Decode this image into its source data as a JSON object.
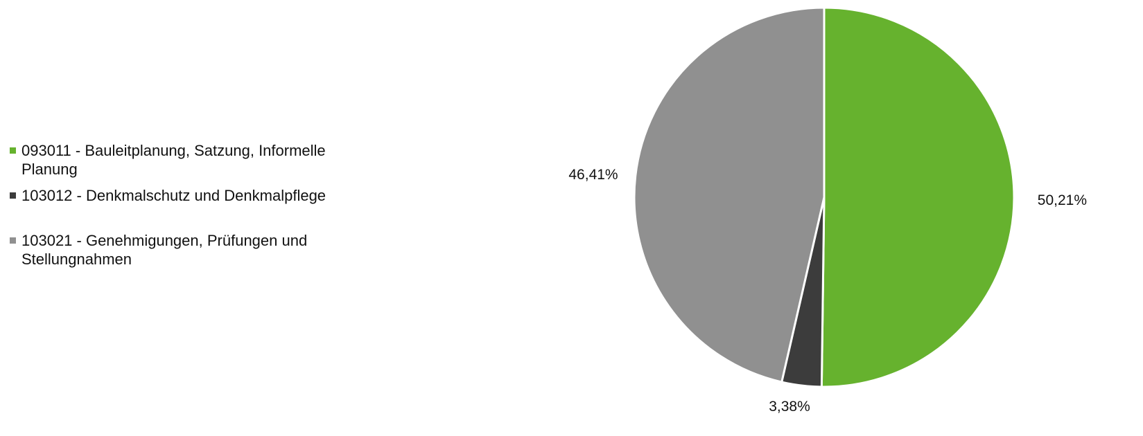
{
  "chart_data": {
    "type": "pie",
    "title": "",
    "legend_position": "left",
    "series": [
      {
        "name": "093011 - Bauleitplanung, Satzung, Informelle Planung",
        "value": 50.21,
        "label": "50,21%",
        "color": "#66b22e"
      },
      {
        "name": "103012 - Denkmalschutz und Denkmalpflege",
        "value": 3.38,
        "label": "3,38%",
        "color": "#3c3c3c"
      },
      {
        "name": "103021 - Genehmigungen, Prüfungen und Stellungnahmen",
        "value": 46.41,
        "label": "46,41%",
        "color": "#909090"
      }
    ]
  }
}
